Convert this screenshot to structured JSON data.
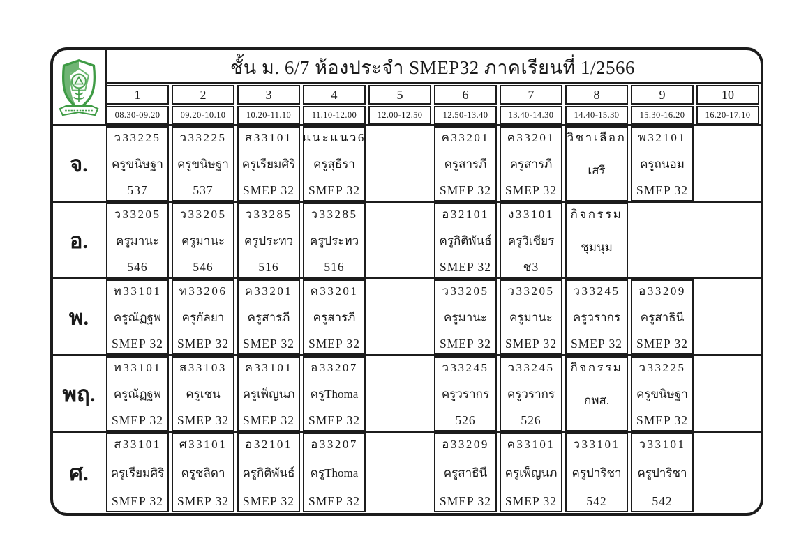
{
  "title": "ชั้น ม. 6/7 ห้องประจำ SMEP32 ภาคเรียนที่ 1/2566",
  "logo": {
    "name": "school-crest",
    "green": "#3f9b45"
  },
  "colors": {
    "line": "#1c1c1c",
    "text": "#1a1a1a",
    "background": "#ffffff",
    "logo_green": "#3f9b45"
  },
  "periods": [
    {
      "num": "1",
      "time": "08.30-09.20"
    },
    {
      "num": "2",
      "time": "09.20-10.10"
    },
    {
      "num": "3",
      "time": "10.20-11.10"
    },
    {
      "num": "4",
      "time": "11.10-12.00"
    },
    {
      "num": "5",
      "time": "12.00-12.50"
    },
    {
      "num": "6",
      "time": "12.50-13.40"
    },
    {
      "num": "7",
      "time": "13.40-14.30"
    },
    {
      "num": "8",
      "time": "14.40-15.30"
    },
    {
      "num": "9",
      "time": "15.30-16.20"
    },
    {
      "num": "10",
      "time": "16.20-17.10"
    }
  ],
  "days": [
    {
      "label": "จ.",
      "cells": [
        {
          "code": "ว33225",
          "teacher": "ครูขนิษฐา",
          "room": "537"
        },
        {
          "code": "ว33225",
          "teacher": "ครูขนิษฐา",
          "room": "537"
        },
        {
          "code": "ส33101",
          "teacher": "ครูเรียมศิริ",
          "room": "SMEP 32"
        },
        {
          "code": "แนะแนว6",
          "teacher": "ครูสุธีรา",
          "room": "SMEP 32"
        },
        null,
        {
          "code": "ค33201",
          "teacher": "ครูสารภี",
          "room": "SMEP 32"
        },
        {
          "code": "ค33201",
          "teacher": "ครูสารภี",
          "room": "SMEP 32"
        },
        {
          "code": "วิชาเลือก",
          "teacher": "เสรี",
          "room": ""
        },
        {
          "code": "พ32101",
          "teacher": "ครูถนอม",
          "room": "SMEP 32"
        },
        null
      ]
    },
    {
      "label": "อ.",
      "cells": [
        {
          "code": "ว33205",
          "teacher": "ครูมานะ",
          "room": "546"
        },
        {
          "code": "ว33205",
          "teacher": "ครูมานะ",
          "room": "546"
        },
        {
          "code": "ว33285",
          "teacher": "ครูประทว",
          "room": "516"
        },
        {
          "code": "ว33285",
          "teacher": "ครูประทว",
          "room": "516"
        },
        null,
        {
          "code": "อ32101",
          "teacher": "ครูกิติพันธ์",
          "room": "SMEP 32"
        },
        {
          "code": "ง33101",
          "teacher": "ครูวิเชียร",
          "room": "ช3"
        },
        {
          "code": "กิจกรรม",
          "teacher": "ชุมนุม",
          "room": ""
        },
        null,
        null
      ]
    },
    {
      "label": "พ.",
      "cells": [
        {
          "code": "ท33101",
          "teacher": "ครูณัฏฐพ",
          "room": "SMEP 32"
        },
        {
          "code": "ท33206",
          "teacher": "ครูกัลยา",
          "room": "SMEP 32"
        },
        {
          "code": "ค33201",
          "teacher": "ครูสารภี",
          "room": "SMEP 32"
        },
        {
          "code": "ค33201",
          "teacher": "ครูสารภี",
          "room": "SMEP 32"
        },
        null,
        {
          "code": "ว33205",
          "teacher": "ครูมานะ",
          "room": "SMEP 32"
        },
        {
          "code": "ว33205",
          "teacher": "ครูมานะ",
          "room": "SMEP 32"
        },
        {
          "code": "ว33245",
          "teacher": "ครูวรากร",
          "room": "SMEP 32"
        },
        {
          "code": "อ33209",
          "teacher": "ครูสาธินี",
          "room": "SMEP 32"
        },
        null
      ]
    },
    {
      "label": "พฤ.",
      "cells": [
        {
          "code": "ท33101",
          "teacher": "ครูณัฏฐพ",
          "room": "SMEP 32"
        },
        {
          "code": "ส33103",
          "teacher": "ครูเชน",
          "room": "SMEP 32"
        },
        {
          "code": "ค33101",
          "teacher": "ครูเพ็ญนภ",
          "room": "SMEP 32"
        },
        {
          "code": "อ33207",
          "teacher": "ครูThoma",
          "room": "SMEP 32"
        },
        null,
        {
          "code": "ว33245",
          "teacher": "ครูวรากร",
          "room": "526"
        },
        {
          "code": "ว33245",
          "teacher": "ครูวรากร",
          "room": "526"
        },
        {
          "code": "กิจกรรม",
          "teacher": "กพส.",
          "room": ""
        },
        {
          "code": "ว33225",
          "teacher": "ครูขนิษฐา",
          "room": "SMEP 32"
        },
        null
      ]
    },
    {
      "label": "ศ.",
      "cells": [
        {
          "code": "ส33101",
          "teacher": "ครูเรียมศิริ",
          "room": "SMEP 32"
        },
        {
          "code": "ศ33101",
          "teacher": "ครูชลิดา",
          "room": "SMEP 32"
        },
        {
          "code": "อ32101",
          "teacher": "ครูกิติพันธ์",
          "room": "SMEP 32"
        },
        {
          "code": "อ33207",
          "teacher": "ครูThoma",
          "room": "SMEP 32"
        },
        null,
        {
          "code": "อ33209",
          "teacher": "ครูสาธินี",
          "room": "SMEP 32"
        },
        {
          "code": "ค33101",
          "teacher": "ครูเพ็ญนภ",
          "room": "SMEP 32"
        },
        {
          "code": "ว33101",
          "teacher": "ครูปาริชา",
          "room": "542"
        },
        {
          "code": "ว33101",
          "teacher": "ครูปาริชา",
          "room": "542"
        },
        null
      ]
    }
  ]
}
